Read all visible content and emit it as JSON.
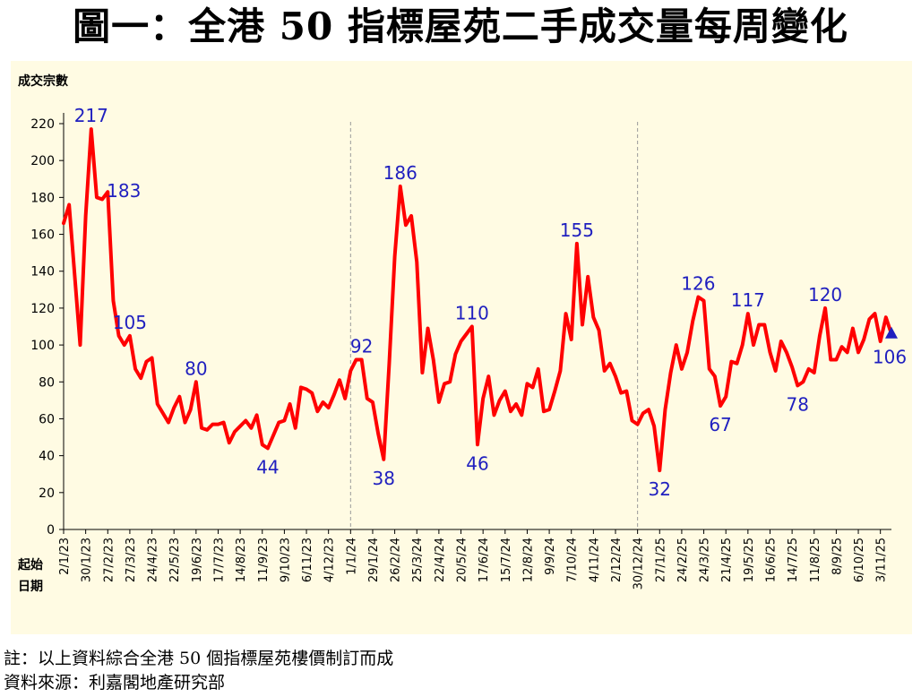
{
  "title": "圖一：全港 50 指標屋苑二手成交量每周變化",
  "footnotes": {
    "note": "註：以上資料綜合全港 50 個指標屋苑樓價制訂而成",
    "source": "資料來源：利嘉閣地產研究部"
  },
  "colors": {
    "line": "#ff0000",
    "annotation": "#1f1fbf",
    "marker": "#1f1fbf",
    "panel": "#fffbe3",
    "divider": "#9a9a9a"
  },
  "chart_data": {
    "type": "line",
    "title": "圖一：全港 50 指標屋苑二手成交量每周變化",
    "ylabel": "成交宗數",
    "xlabel": "起始日期",
    "xlabel_lines": [
      "起始",
      "日期"
    ],
    "ylim": [
      0,
      220
    ],
    "yticks": [
      0,
      20,
      40,
      60,
      80,
      100,
      120,
      140,
      160,
      180,
      200,
      220
    ],
    "grid": false,
    "x_tick_labels": [
      "2/1/23",
      "30/1/23",
      "27/2/23",
      "27/3/23",
      "24/4/23",
      "22/5/23",
      "19/6/23",
      "17/7/23",
      "14/8/23",
      "11/9/23",
      "9/10/23",
      "6/11/23",
      "4/12/23",
      "1/1/24",
      "29/1/24",
      "26/2/24",
      "25/3/24",
      "22/4/24",
      "20/5/24",
      "17/6/24",
      "15/7/24",
      "12/8/24",
      "9/9/24",
      "7/10/24",
      "4/11/24",
      "2/12/24",
      "30/12/24",
      "27/1/25",
      "24/2/25",
      "24/3/25",
      "21/4/25",
      "19/5/25",
      "16/6/25",
      "14/7/25",
      "11/8/25",
      "8/9/25",
      "6/10/25",
      "3/11/25"
    ],
    "divider_weeks": [
      52,
      104
    ],
    "series": [
      {
        "values": [
          166,
          176,
          138,
          100,
          170,
          217,
          180,
          179,
          183,
          124,
          105,
          100,
          105,
          87,
          82,
          91,
          93,
          68,
          63,
          58,
          66,
          72,
          58,
          65,
          80,
          55,
          54,
          57,
          57,
          58,
          47,
          53,
          56,
          59,
          55,
          62,
          46,
          44,
          51,
          58,
          59,
          68,
          55,
          77,
          76,
          74,
          64,
          69,
          66,
          73,
          81,
          71,
          86,
          92,
          92,
          71,
          69,
          52,
          38,
          90,
          148,
          186,
          165,
          170,
          145,
          85,
          109,
          92,
          69,
          79,
          80,
          95,
          102,
          106,
          110,
          46,
          71,
          83,
          62,
          70,
          75,
          64,
          68,
          62,
          79,
          77,
          87,
          64,
          65,
          75,
          86,
          117,
          103,
          155,
          111,
          137,
          115,
          108,
          86,
          90,
          83,
          74,
          75,
          59,
          57,
          63,
          65,
          56,
          32,
          65,
          85,
          100,
          87,
          96,
          113,
          126,
          124,
          87,
          83,
          67,
          72,
          91,
          90,
          100,
          117,
          100,
          111,
          111,
          96,
          86,
          102,
          96,
          88,
          78,
          80,
          87,
          85,
          105,
          120,
          92,
          92,
          99,
          96,
          109,
          96,
          103,
          114,
          117,
          102,
          115,
          106
        ]
      }
    ],
    "annotations": [
      {
        "week": 5,
        "value": 217,
        "label": "217"
      },
      {
        "week": 8,
        "value": 183,
        "label": "183"
      },
      {
        "week": 12,
        "value": 105,
        "label": "105"
      },
      {
        "week": 24,
        "value": 80,
        "label": "80"
      },
      {
        "week": 37,
        "value": 44,
        "label": "44"
      },
      {
        "week": 54,
        "value": 92,
        "label": "92"
      },
      {
        "week": 58,
        "value": 38,
        "label": "38"
      },
      {
        "week": 61,
        "value": 186,
        "label": "186"
      },
      {
        "week": 74,
        "value": 110,
        "label": "110"
      },
      {
        "week": 75,
        "value": 46,
        "label": "46"
      },
      {
        "week": 93,
        "value": 155,
        "label": "155"
      },
      {
        "week": 108,
        "value": 32,
        "label": "32"
      },
      {
        "week": 115,
        "value": 126,
        "label": "126"
      },
      {
        "week": 119,
        "value": 67,
        "label": "67"
      },
      {
        "week": 124,
        "value": 117,
        "label": "117"
      },
      {
        "week": 133,
        "value": 78,
        "label": "78"
      },
      {
        "week": 138,
        "value": 120,
        "label": "120"
      },
      {
        "week": 150,
        "value": 106,
        "label": "106"
      }
    ],
    "last_point_marker": "triangle"
  }
}
